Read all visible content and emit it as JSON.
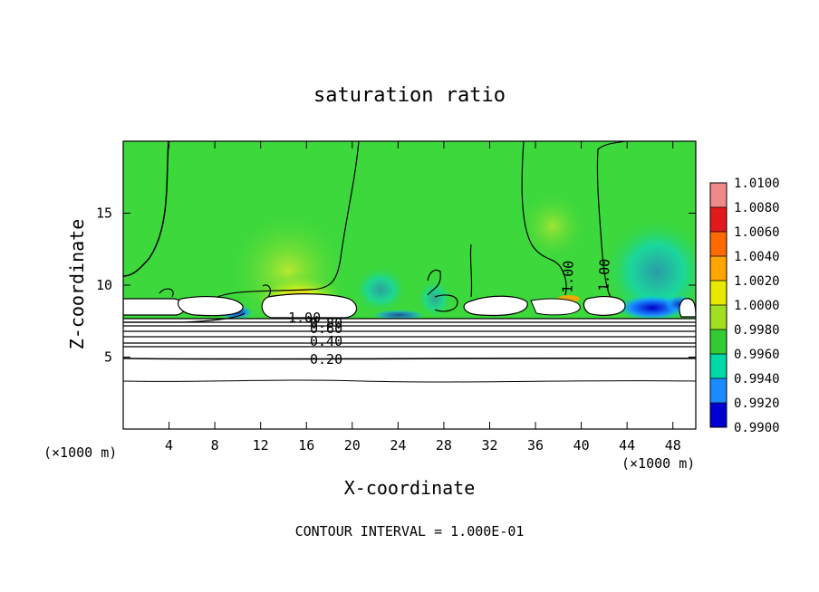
{
  "chart_data": {
    "type": "heatmap",
    "title": "saturation ratio",
    "xlabel": "X-coordinate",
    "ylabel": "Z-coordinate",
    "x_unit_left": "(×1000 m)",
    "x_unit_right": "(×1000 m)",
    "footer": "CONTOUR INTERVAL = 1.000E-01",
    "xlim": [
      0,
      50
    ],
    "ylim": [
      0,
      20
    ],
    "x_ticks": [
      4,
      8,
      12,
      16,
      20,
      24,
      28,
      32,
      36,
      40,
      44,
      48
    ],
    "y_ticks": [
      5,
      10,
      15
    ],
    "colorbar": {
      "levels": [
        "1.0100",
        "1.0080",
        "1.0060",
        "1.0040",
        "1.0020",
        "1.0000",
        "0.9980",
        "0.9960",
        "0.9940",
        "0.9920",
        "0.9900"
      ],
      "colors": [
        "#f08a8a",
        "#e31a1c",
        "#ff6a00",
        "#ffa500",
        "#e8e800",
        "#a0e020",
        "#33cc33",
        "#00d8a8",
        "#1a8cff",
        "#0000d0",
        "#7a00a0"
      ]
    },
    "contour_labels": [
      {
        "text": "1.00",
        "x": 39,
        "z": 10.5
      },
      {
        "text": "1.00",
        "x": 42.2,
        "z": 10.6
      },
      {
        "text": "1.00",
        "x": 15.4,
        "z": 7.7
      },
      {
        "text": "0.80",
        "x": 17.8,
        "z": 7.3
      },
      {
        "text": "0.60",
        "x": 17.8,
        "z": 6.9
      },
      {
        "text": "0.40",
        "x": 17.8,
        "z": 6.0
      },
      {
        "text": "0.20",
        "x": 17.8,
        "z": 4.9
      }
    ]
  }
}
